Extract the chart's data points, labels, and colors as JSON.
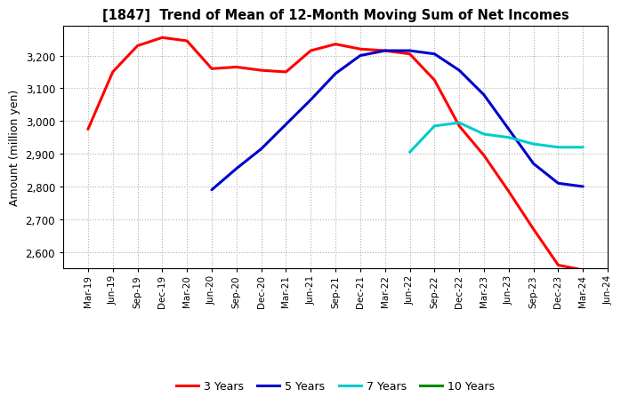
{
  "title": "[1847]  Trend of Mean of 12-Month Moving Sum of Net Incomes",
  "ylabel": "Amount (million yen)",
  "background_color": "#ffffff",
  "grid_color": "#b0b0b0",
  "x_labels": [
    "Mar-19",
    "Jun-19",
    "Sep-19",
    "Dec-19",
    "Mar-20",
    "Jun-20",
    "Sep-20",
    "Dec-20",
    "Mar-21",
    "Jun-21",
    "Sep-21",
    "Dec-21",
    "Mar-22",
    "Jun-22",
    "Sep-22",
    "Dec-22",
    "Mar-23",
    "Jun-23",
    "Sep-23",
    "Dec-23",
    "Mar-24",
    "Jun-24"
  ],
  "series": {
    "3 Years": {
      "color": "#ff0000",
      "data": [
        2975,
        3150,
        3230,
        3255,
        3245,
        3160,
        3165,
        3155,
        3150,
        3215,
        3235,
        3220,
        3215,
        3205,
        3125,
        2985,
        2895,
        2785,
        2670,
        2560,
        2545,
        null
      ]
    },
    "5 Years": {
      "color": "#0000cc",
      "data": [
        null,
        null,
        null,
        null,
        null,
        2790,
        2855,
        2915,
        2990,
        3065,
        3145,
        3200,
        3215,
        3215,
        3205,
        3155,
        3080,
        2975,
        2870,
        2810,
        2800,
        null
      ]
    },
    "7 Years": {
      "color": "#00cccc",
      "data": [
        null,
        null,
        null,
        null,
        null,
        null,
        null,
        null,
        null,
        null,
        null,
        null,
        null,
        2905,
        2985,
        2995,
        2960,
        2950,
        2930,
        2920,
        2920,
        null
      ]
    },
    "10 Years": {
      "color": "#008800",
      "data": [
        null,
        null,
        null,
        null,
        null,
        null,
        null,
        null,
        null,
        null,
        null,
        null,
        null,
        null,
        null,
        null,
        null,
        null,
        null,
        null,
        null,
        null
      ]
    }
  },
  "ylim": [
    2550,
    3290
  ],
  "yticks": [
    2600,
    2700,
    2800,
    2900,
    3000,
    3100,
    3200
  ],
  "linewidth": 2.2,
  "legend_labels": [
    "3 Years",
    "5 Years",
    "7 Years",
    "10 Years"
  ],
  "legend_colors": [
    "#ff0000",
    "#0000cc",
    "#00cccc",
    "#008800"
  ]
}
